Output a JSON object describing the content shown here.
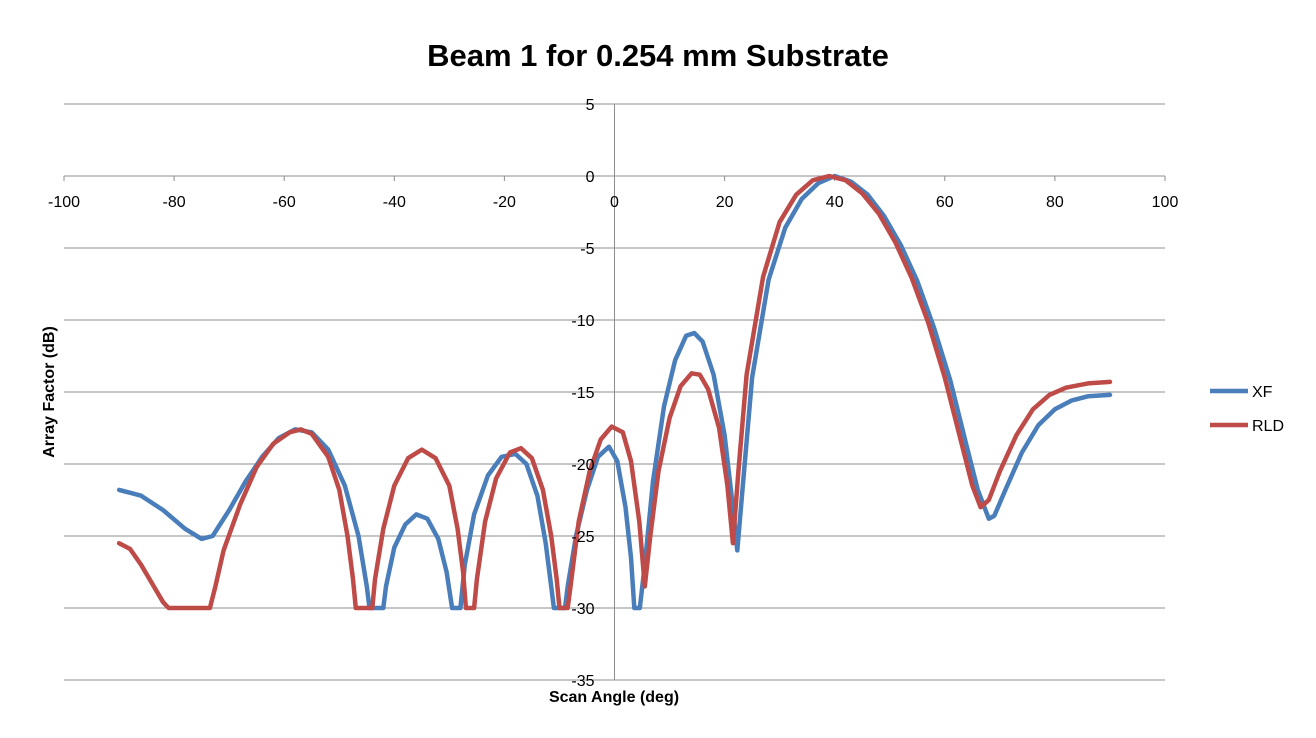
{
  "chart_data": {
    "type": "line",
    "title": "Beam 1 for 0.254 mm Substrate",
    "xlabel": "Scan Angle (deg)",
    "ylabel": "Array Factor (dB)",
    "xlim": [
      -100,
      100
    ],
    "ylim": [
      -35,
      5
    ],
    "xticks": [
      -100,
      -80,
      -60,
      -40,
      -20,
      0,
      20,
      40,
      60,
      80,
      100
    ],
    "yticks": [
      5,
      0,
      -5,
      -10,
      -15,
      -20,
      -25,
      -30,
      -35
    ],
    "grid": "horizontal",
    "legend_position": "right",
    "series": [
      {
        "name": "XF",
        "color": "#4a7ebb",
        "points": [
          [
            -90,
            -21.8
          ],
          [
            -86,
            -22.2
          ],
          [
            -82,
            -23.2
          ],
          [
            -78,
            -24.5
          ],
          [
            -75,
            -25.2
          ],
          [
            -73,
            -25.0
          ],
          [
            -70,
            -23.2
          ],
          [
            -67,
            -21.2
          ],
          [
            -64,
            -19.5
          ],
          [
            -61,
            -18.2
          ],
          [
            -58,
            -17.6
          ],
          [
            -55,
            -17.8
          ],
          [
            -52,
            -19.0
          ],
          [
            -49,
            -21.5
          ],
          [
            -46.5,
            -25.0
          ],
          [
            -45,
            -28.5
          ],
          [
            -44.5,
            -30
          ],
          [
            -42,
            -30
          ],
          [
            -41.5,
            -28.5
          ],
          [
            -40,
            -25.8
          ],
          [
            -38,
            -24.2
          ],
          [
            -36,
            -23.5
          ],
          [
            -34,
            -23.8
          ],
          [
            -32,
            -25.2
          ],
          [
            -30.5,
            -27.5
          ],
          [
            -29.5,
            -30
          ],
          [
            -28,
            -30
          ],
          [
            -27.2,
            -27.0
          ],
          [
            -25.5,
            -23.5
          ],
          [
            -23,
            -20.8
          ],
          [
            -20.5,
            -19.5
          ],
          [
            -18,
            -19.3
          ],
          [
            -16,
            -20.0
          ],
          [
            -14,
            -22.2
          ],
          [
            -12.5,
            -25.5
          ],
          [
            -11.5,
            -28.5
          ],
          [
            -11,
            -30
          ],
          [
            -9,
            -30
          ],
          [
            -8.5,
            -28.5
          ],
          [
            -7,
            -25.0
          ],
          [
            -5,
            -21.8
          ],
          [
            -3,
            -19.5
          ],
          [
            -1,
            -18.8
          ],
          [
            0.5,
            -19.8
          ],
          [
            2,
            -23.0
          ],
          [
            3,
            -26.5
          ],
          [
            3.6,
            -30
          ],
          [
            4.6,
            -30
          ],
          [
            5.5,
            -27.0
          ],
          [
            7,
            -21.2
          ],
          [
            9,
            -16.0
          ],
          [
            11,
            -12.8
          ],
          [
            13,
            -11.1
          ],
          [
            14.5,
            -10.9
          ],
          [
            16,
            -11.5
          ],
          [
            18,
            -13.8
          ],
          [
            20,
            -18.0
          ],
          [
            21.5,
            -23.0
          ],
          [
            22.3,
            -26.0
          ],
          [
            23.2,
            -22.0
          ],
          [
            25,
            -14.0
          ],
          [
            28,
            -7.2
          ],
          [
            31,
            -3.6
          ],
          [
            34,
            -1.6
          ],
          [
            37,
            -0.5
          ],
          [
            40,
            0.0
          ],
          [
            43,
            -0.4
          ],
          [
            46,
            -1.3
          ],
          [
            49,
            -2.8
          ],
          [
            52,
            -4.8
          ],
          [
            55,
            -7.3
          ],
          [
            58,
            -10.5
          ],
          [
            61,
            -14.2
          ],
          [
            64,
            -18.8
          ],
          [
            66,
            -21.8
          ],
          [
            68,
            -23.8
          ],
          [
            69,
            -23.6
          ],
          [
            71,
            -21.8
          ],
          [
            74,
            -19.2
          ],
          [
            77,
            -17.3
          ],
          [
            80,
            -16.2
          ],
          [
            83,
            -15.6
          ],
          [
            86,
            -15.3
          ],
          [
            90,
            -15.2
          ]
        ]
      },
      {
        "name": "RLD",
        "color": "#be4b48",
        "points": [
          [
            -90,
            -25.5
          ],
          [
            -88,
            -25.9
          ],
          [
            -86,
            -27.0
          ],
          [
            -84,
            -28.3
          ],
          [
            -82,
            -29.6
          ],
          [
            -81,
            -30
          ],
          [
            -73.5,
            -30
          ],
          [
            -72.5,
            -28.5
          ],
          [
            -71,
            -26.0
          ],
          [
            -68,
            -22.8
          ],
          [
            -65,
            -20.2
          ],
          [
            -62,
            -18.6
          ],
          [
            -59,
            -17.8
          ],
          [
            -57,
            -17.6
          ],
          [
            -55,
            -17.9
          ],
          [
            -52,
            -19.5
          ],
          [
            -50,
            -21.8
          ],
          [
            -48.5,
            -25.0
          ],
          [
            -47.5,
            -28.0
          ],
          [
            -47,
            -30
          ],
          [
            -44,
            -30
          ],
          [
            -43.5,
            -28.0
          ],
          [
            -42,
            -24.5
          ],
          [
            -40,
            -21.5
          ],
          [
            -37.5,
            -19.6
          ],
          [
            -35,
            -19.0
          ],
          [
            -32.5,
            -19.6
          ],
          [
            -30,
            -21.5
          ],
          [
            -28.5,
            -24.5
          ],
          [
            -27.5,
            -27.5
          ],
          [
            -27,
            -30
          ],
          [
            -25.5,
            -30
          ],
          [
            -25,
            -28.0
          ],
          [
            -23.5,
            -24.0
          ],
          [
            -21.5,
            -21.0
          ],
          [
            -19,
            -19.2
          ],
          [
            -17,
            -18.9
          ],
          [
            -15,
            -19.6
          ],
          [
            -13,
            -21.8
          ],
          [
            -11.5,
            -25.0
          ],
          [
            -10.5,
            -28.0
          ],
          [
            -10,
            -30
          ],
          [
            -8.5,
            -30
          ],
          [
            -8,
            -28.5
          ],
          [
            -6.5,
            -24.0
          ],
          [
            -4.5,
            -20.5
          ],
          [
            -2.5,
            -18.3
          ],
          [
            -0.5,
            -17.4
          ],
          [
            1.5,
            -17.8
          ],
          [
            3,
            -19.8
          ],
          [
            4.5,
            -24.0
          ],
          [
            5.5,
            -28.5
          ],
          [
            6.5,
            -25.0
          ],
          [
            8,
            -20.5
          ],
          [
            10,
            -16.8
          ],
          [
            12,
            -14.6
          ],
          [
            14,
            -13.7
          ],
          [
            15.5,
            -13.8
          ],
          [
            17,
            -14.8
          ],
          [
            19,
            -17.5
          ],
          [
            20.5,
            -21.5
          ],
          [
            21.5,
            -25.5
          ],
          [
            22.5,
            -20.5
          ],
          [
            24,
            -13.8
          ],
          [
            27,
            -7.0
          ],
          [
            30,
            -3.2
          ],
          [
            33,
            -1.3
          ],
          [
            36,
            -0.3
          ],
          [
            39,
            0.0
          ],
          [
            42,
            -0.3
          ],
          [
            45,
            -1.2
          ],
          [
            48,
            -2.6
          ],
          [
            51,
            -4.6
          ],
          [
            54,
            -7.1
          ],
          [
            57,
            -10.2
          ],
          [
            60,
            -14.0
          ],
          [
            63,
            -18.5
          ],
          [
            65,
            -21.5
          ],
          [
            66.5,
            -23.0
          ],
          [
            68,
            -22.5
          ],
          [
            70,
            -20.5
          ],
          [
            73,
            -18.0
          ],
          [
            76,
            -16.2
          ],
          [
            79,
            -15.2
          ],
          [
            82,
            -14.7
          ],
          [
            86,
            -14.4
          ],
          [
            90,
            -14.3
          ]
        ]
      }
    ]
  }
}
